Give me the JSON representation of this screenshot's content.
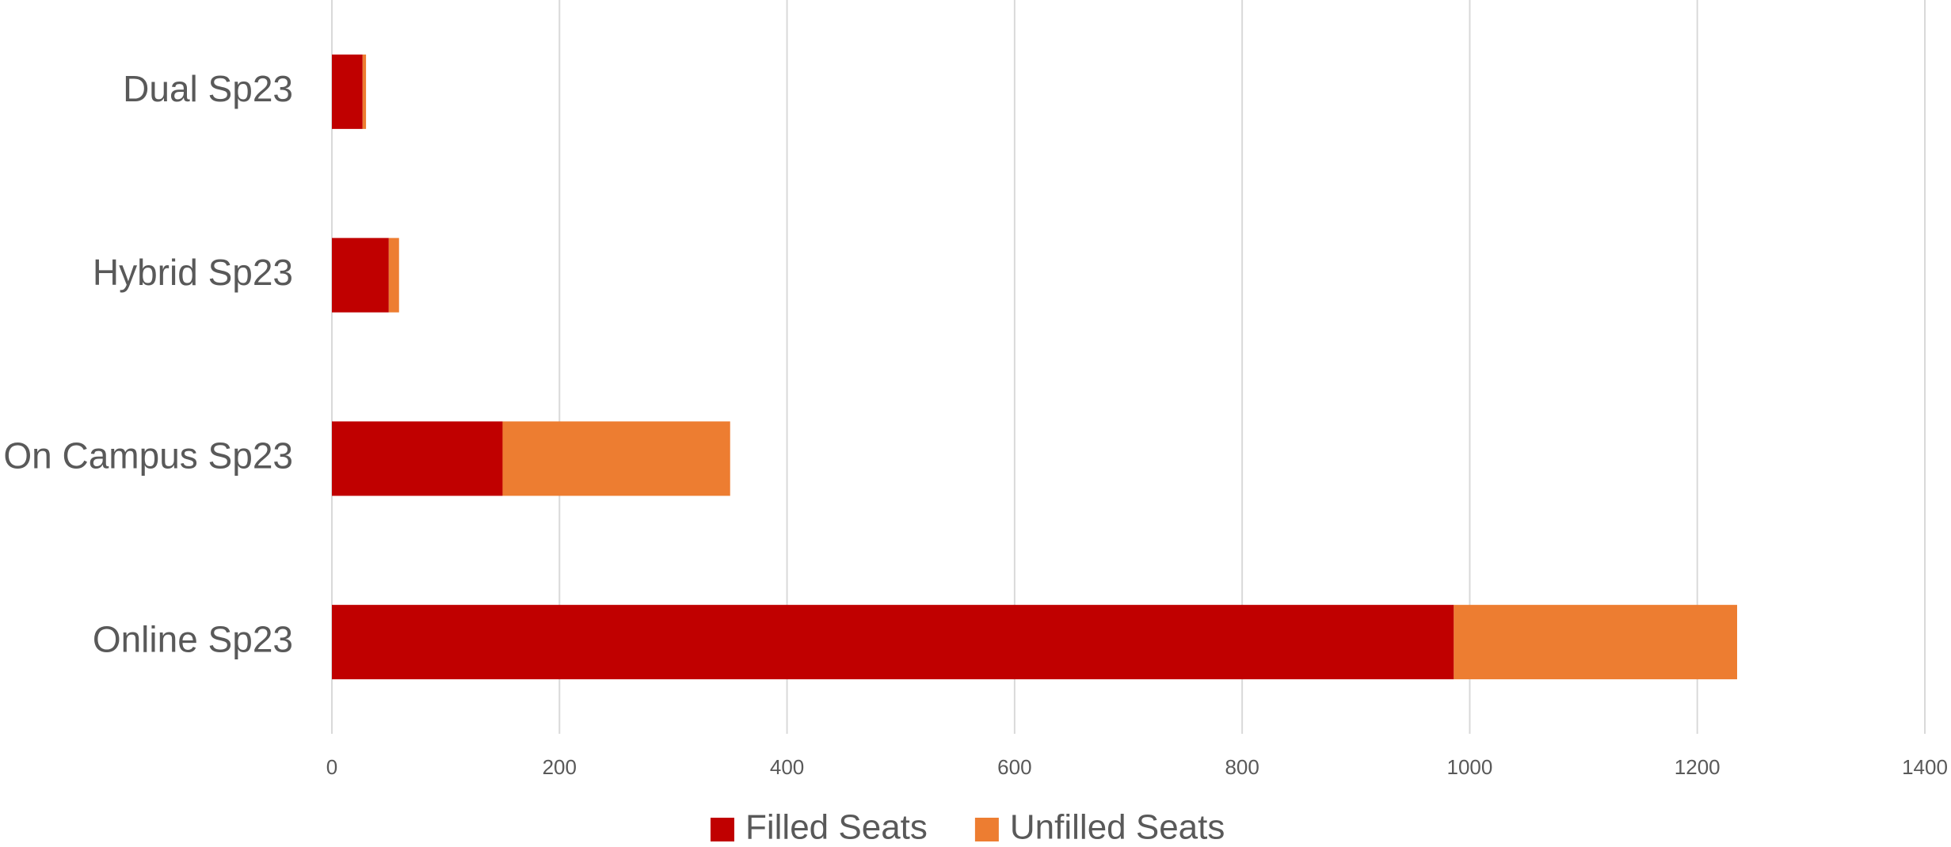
{
  "chart_data": {
    "type": "stacked_barh",
    "categories": [
      "Dual Sp23",
      "Hybrid Sp23",
      "On Campus Sp23",
      "Online Sp23"
    ],
    "series": [
      {
        "name": "Filled Seats",
        "color": "#c00000",
        "values": [
          27,
          50,
          150,
          986
        ]
      },
      {
        "name": "Unfilled Seats",
        "color": "#ed7d31",
        "values": [
          3,
          9,
          200,
          249
        ]
      }
    ],
    "xlim": [
      0,
      1400
    ],
    "xticks": [
      0,
      200,
      400,
      600,
      800,
      1000,
      1200,
      1400
    ],
    "grid": true,
    "legend": "bottom"
  }
}
